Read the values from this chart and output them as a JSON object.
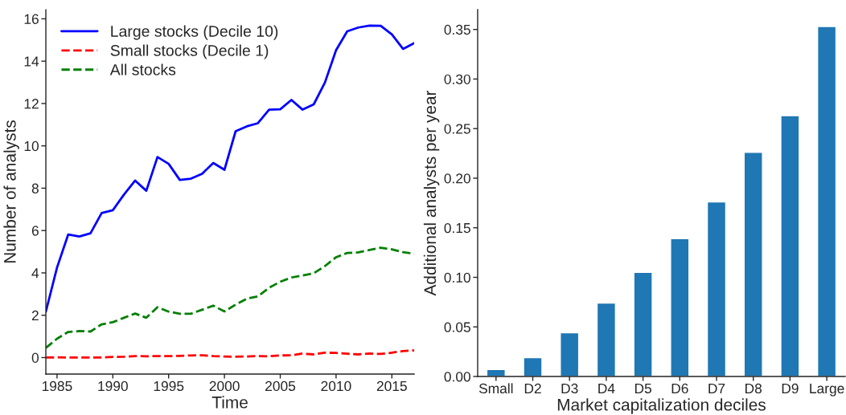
{
  "chart_data": [
    {
      "type": "line",
      "xlabel": "Time",
      "ylabel": "Number of analysts",
      "x": [
        1984,
        1985,
        1986,
        1987,
        1988,
        1989,
        1990,
        1991,
        1992,
        1993,
        1994,
        1995,
        1996,
        1997,
        1998,
        1999,
        2000,
        2001,
        2002,
        2003,
        2004,
        2005,
        2006,
        2007,
        2008,
        2009,
        2010,
        2011,
        2012,
        2013,
        2014,
        2015,
        2016,
        2017
      ],
      "series": [
        {
          "name": "Large stocks (Decile 10)",
          "color": "#0000ff",
          "line_style": "solid",
          "values": [
            2.17,
            4.25,
            5.81,
            5.72,
            5.87,
            6.83,
            6.96,
            7.7,
            8.36,
            7.88,
            9.47,
            9.15,
            8.39,
            8.45,
            8.68,
            9.19,
            8.87,
            10.69,
            10.92,
            11.07,
            11.71,
            11.73,
            12.17,
            11.71,
            11.96,
            12.99,
            14.52,
            15.41,
            15.59,
            15.68,
            15.67,
            15.26,
            14.58,
            14.85
          ]
        },
        {
          "name": "Small stocks (Decile 1)",
          "color": "#ff0000",
          "line_style": "dashed",
          "values": [
            0.0,
            0.01,
            0.0,
            0.0,
            0.0,
            0.0,
            0.03,
            0.04,
            0.07,
            0.06,
            0.07,
            0.07,
            0.08,
            0.1,
            0.11,
            0.07,
            0.05,
            0.04,
            0.05,
            0.07,
            0.06,
            0.1,
            0.11,
            0.19,
            0.15,
            0.23,
            0.22,
            0.18,
            0.15,
            0.19,
            0.17,
            0.23,
            0.31,
            0.34
          ]
        },
        {
          "name": "All stocks",
          "color": "#008000",
          "line_style": "dashed",
          "values": [
            0.46,
            0.89,
            1.21,
            1.25,
            1.23,
            1.57,
            1.67,
            1.88,
            2.08,
            1.88,
            2.38,
            2.17,
            2.07,
            2.07,
            2.26,
            2.45,
            2.18,
            2.5,
            2.78,
            2.89,
            3.3,
            3.58,
            3.78,
            3.88,
            3.98,
            4.32,
            4.74,
            4.94,
            4.97,
            5.08,
            5.19,
            5.11,
            4.98,
            4.9
          ]
        }
      ],
      "xlim": [
        1984,
        2017
      ],
      "xticks": [
        1985,
        1990,
        1995,
        2000,
        2005,
        2010,
        2015
      ],
      "ylim": [
        -0.78,
        16.43
      ],
      "yticks": [
        0,
        2,
        4,
        6,
        8,
        10,
        12,
        14,
        16
      ],
      "legend": "top left",
      "grid": false
    },
    {
      "type": "bar",
      "xlabel": "Market capitalization deciles",
      "ylabel": "Additional analysts per year",
      "categories": [
        "Small",
        "D2",
        "D3",
        "D4",
        "D5",
        "D6",
        "D7",
        "D8",
        "D9",
        "Large"
      ],
      "values": [
        0.007,
        0.019,
        0.044,
        0.074,
        0.105,
        0.139,
        0.176,
        0.226,
        0.263,
        0.353
      ],
      "color": "#1f77b4",
      "ylim": [
        0,
        0.37
      ],
      "yticks": [
        {
          "value": 0,
          "label": "0.00"
        },
        {
          "value": 0.05,
          "label": "0.05"
        },
        {
          "value": 0.1,
          "label": "0.10"
        },
        {
          "value": 0.15,
          "label": "0.15"
        },
        {
          "value": 0.2,
          "label": "0.20"
        },
        {
          "value": 0.25,
          "label": "0.25"
        },
        {
          "value": 0.3,
          "label": "0.30"
        },
        {
          "value": 0.35,
          "label": "0.35"
        }
      ],
      "grid": false
    }
  ]
}
